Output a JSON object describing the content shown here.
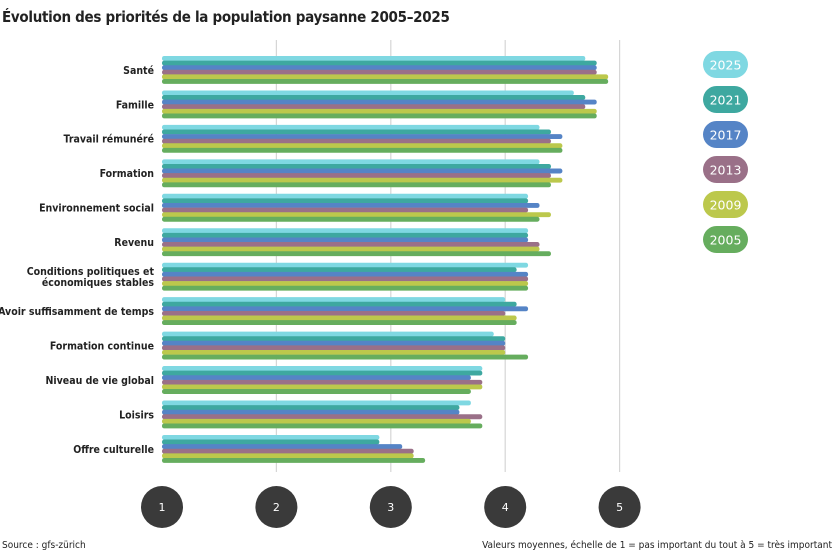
{
  "chart_data": {
    "type": "bar",
    "orientation": "horizontal",
    "title": "Évolution des priorités de la population paysanne 2005–2025",
    "categories": [
      "Santé",
      "Famille",
      "Travail rémunéré",
      "Formation",
      "Environnement social",
      "Revenu",
      "Conditions politiques et\néconomiques stables",
      "Avoir suffisamment de temps",
      "Formation continue",
      "Niveau de vie global",
      "Loisirs",
      "Offre culturelle"
    ],
    "series": [
      {
        "name": "2025",
        "color": "#7fd8e2",
        "values": [
          4.7,
          4.6,
          4.3,
          4.3,
          4.2,
          4.2,
          4.2,
          4.0,
          3.9,
          3.8,
          3.7,
          2.9
        ]
      },
      {
        "name": "2021",
        "color": "#3ea8a0",
        "values": [
          4.8,
          4.7,
          4.4,
          4.4,
          4.2,
          4.2,
          4.1,
          4.1,
          4.0,
          3.8,
          3.6,
          2.9
        ]
      },
      {
        "name": "2017",
        "color": "#5584c6",
        "values": [
          4.8,
          4.8,
          4.5,
          4.5,
          4.3,
          4.2,
          4.2,
          4.2,
          4.0,
          3.7,
          3.6,
          3.1
        ]
      },
      {
        "name": "2013",
        "color": "#9a7088",
        "values": [
          4.8,
          4.7,
          4.4,
          4.4,
          4.2,
          4.3,
          4.2,
          4.0,
          4.0,
          3.8,
          3.8,
          3.2
        ]
      },
      {
        "name": "2009",
        "color": "#bcc84c",
        "values": [
          4.9,
          4.8,
          4.5,
          4.5,
          4.4,
          4.3,
          4.2,
          4.1,
          4.0,
          3.8,
          3.7,
          3.2
        ]
      },
      {
        "name": "2005",
        "color": "#66ad5e",
        "values": [
          4.9,
          4.8,
          4.5,
          4.4,
          4.3,
          4.4,
          4.2,
          4.1,
          4.2,
          3.7,
          3.8,
          3.3
        ]
      }
    ],
    "xlim": [
      1,
      5
    ],
    "xticks": [
      "1",
      "2",
      "3",
      "4",
      "5"
    ],
    "grid": true,
    "legend_position": "right"
  },
  "footer": {
    "source": "Source : gfs-zürich",
    "note": "Valeurs moyennes, échelle de 1 = pas important du tout à 5 = très important"
  }
}
